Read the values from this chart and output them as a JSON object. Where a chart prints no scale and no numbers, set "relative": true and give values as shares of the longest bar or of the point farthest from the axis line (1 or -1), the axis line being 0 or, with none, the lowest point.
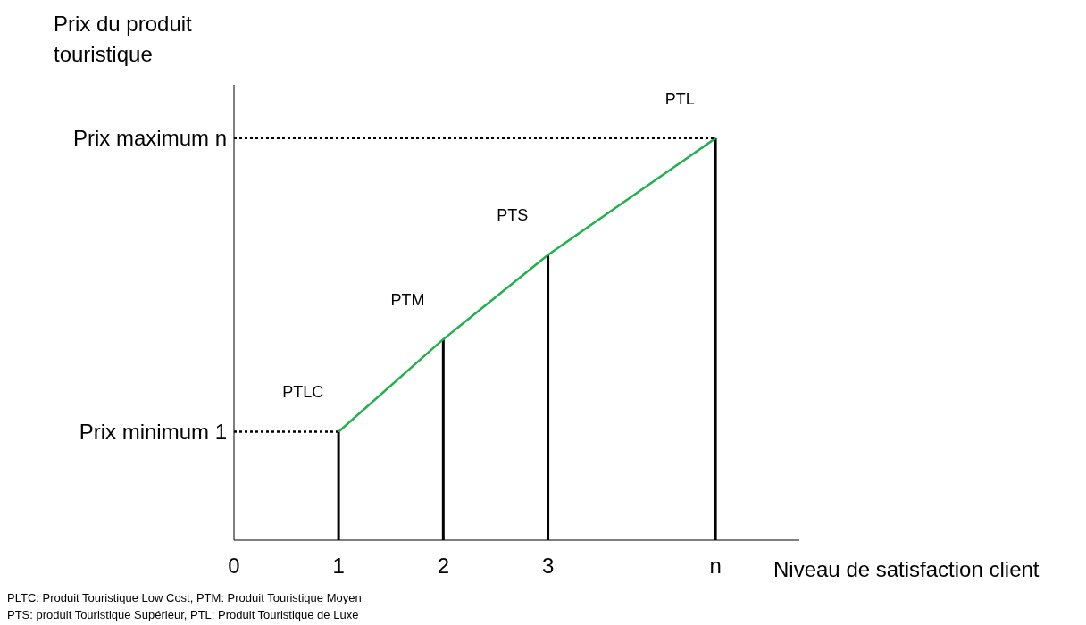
{
  "chart_data": {
    "type": "bar",
    "relative": true,
    "ylabel": "Prix du produit touristique",
    "xlabel": "Niveau de satisfaction client",
    "x": [
      1,
      2,
      3,
      4.6
    ],
    "xlim": [
      0,
      5.4
    ],
    "xticks": [
      0,
      1,
      2,
      3,
      {
        "value": 4.6,
        "label": "n"
      }
    ],
    "tick_labels": "x",
    "marker": "none",
    "series": [
      {
        "color": "#000000",
        "values": [
          0.27,
          0.5,
          0.71,
          1
        ]
      },
      {
        "type": "line",
        "color": "#22b14c",
        "values": [
          0.27,
          0.5,
          0.71,
          1
        ]
      }
    ],
    "ref_lines": [
      {
        "axis": "y",
        "value": 0.27,
        "label": "Prix minimum 1",
        "line_style": "dotted",
        "color": "#000000"
      },
      {
        "axis": "y",
        "value": 1,
        "label": "Prix maximum n",
        "line_style": "dotted",
        "color": "#000000"
      }
    ],
    "annotations": [
      {
        "text": "PTLC",
        "x": 1,
        "y": 0.27
      },
      {
        "text": "PTM",
        "x": 2,
        "y": 0.5
      },
      {
        "text": "PTS",
        "x": 3,
        "y": 0.71
      },
      {
        "text": "PTL",
        "x": 4.6,
        "y": 1
      },
      "PLTC: Produit Touristique Low Cost, PTM: Produit Touristique Moyen",
      "PTS: produit Touristique Supérieur, PTL: Produit Touristique de Luxe"
    ]
  }
}
